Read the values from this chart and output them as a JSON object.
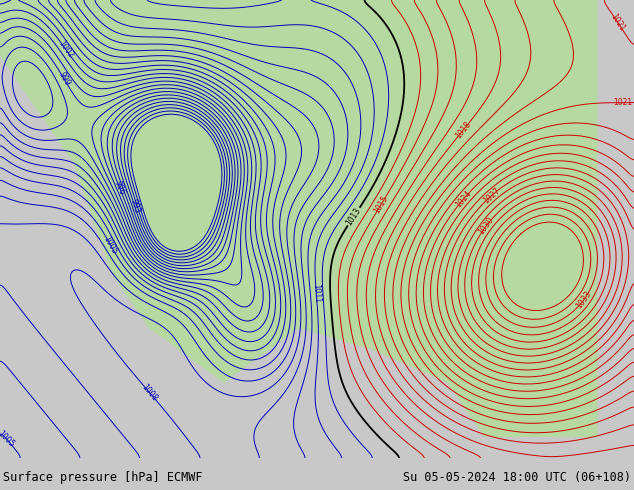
{
  "title_left": "Surface pressure [hPa] ECMWF",
  "title_right": "Su 05-05-2024 18:00 UTC (06+108)",
  "background_color": "#c8c8c8",
  "land_color": "#b5d9a0",
  "ocean_color": "#c8c8c8",
  "lake_color": "#c8c8c8",
  "contour_blue_color": "#0000bb",
  "contour_red_color": "#cc0000",
  "contour_black_color": "#000000",
  "text_color": "#000000",
  "fig_width": 6.34,
  "fig_height": 4.9,
  "dpi": 100,
  "lon_min": -140,
  "lon_max": -55,
  "lat_min": 18,
  "lat_max": 60,
  "bottom_bar_color": "#c8c8c8",
  "font_size_bottom": 8.5,
  "border_color": "#808080",
  "state_border_color": "#808080",
  "coastline_color": "#808080"
}
